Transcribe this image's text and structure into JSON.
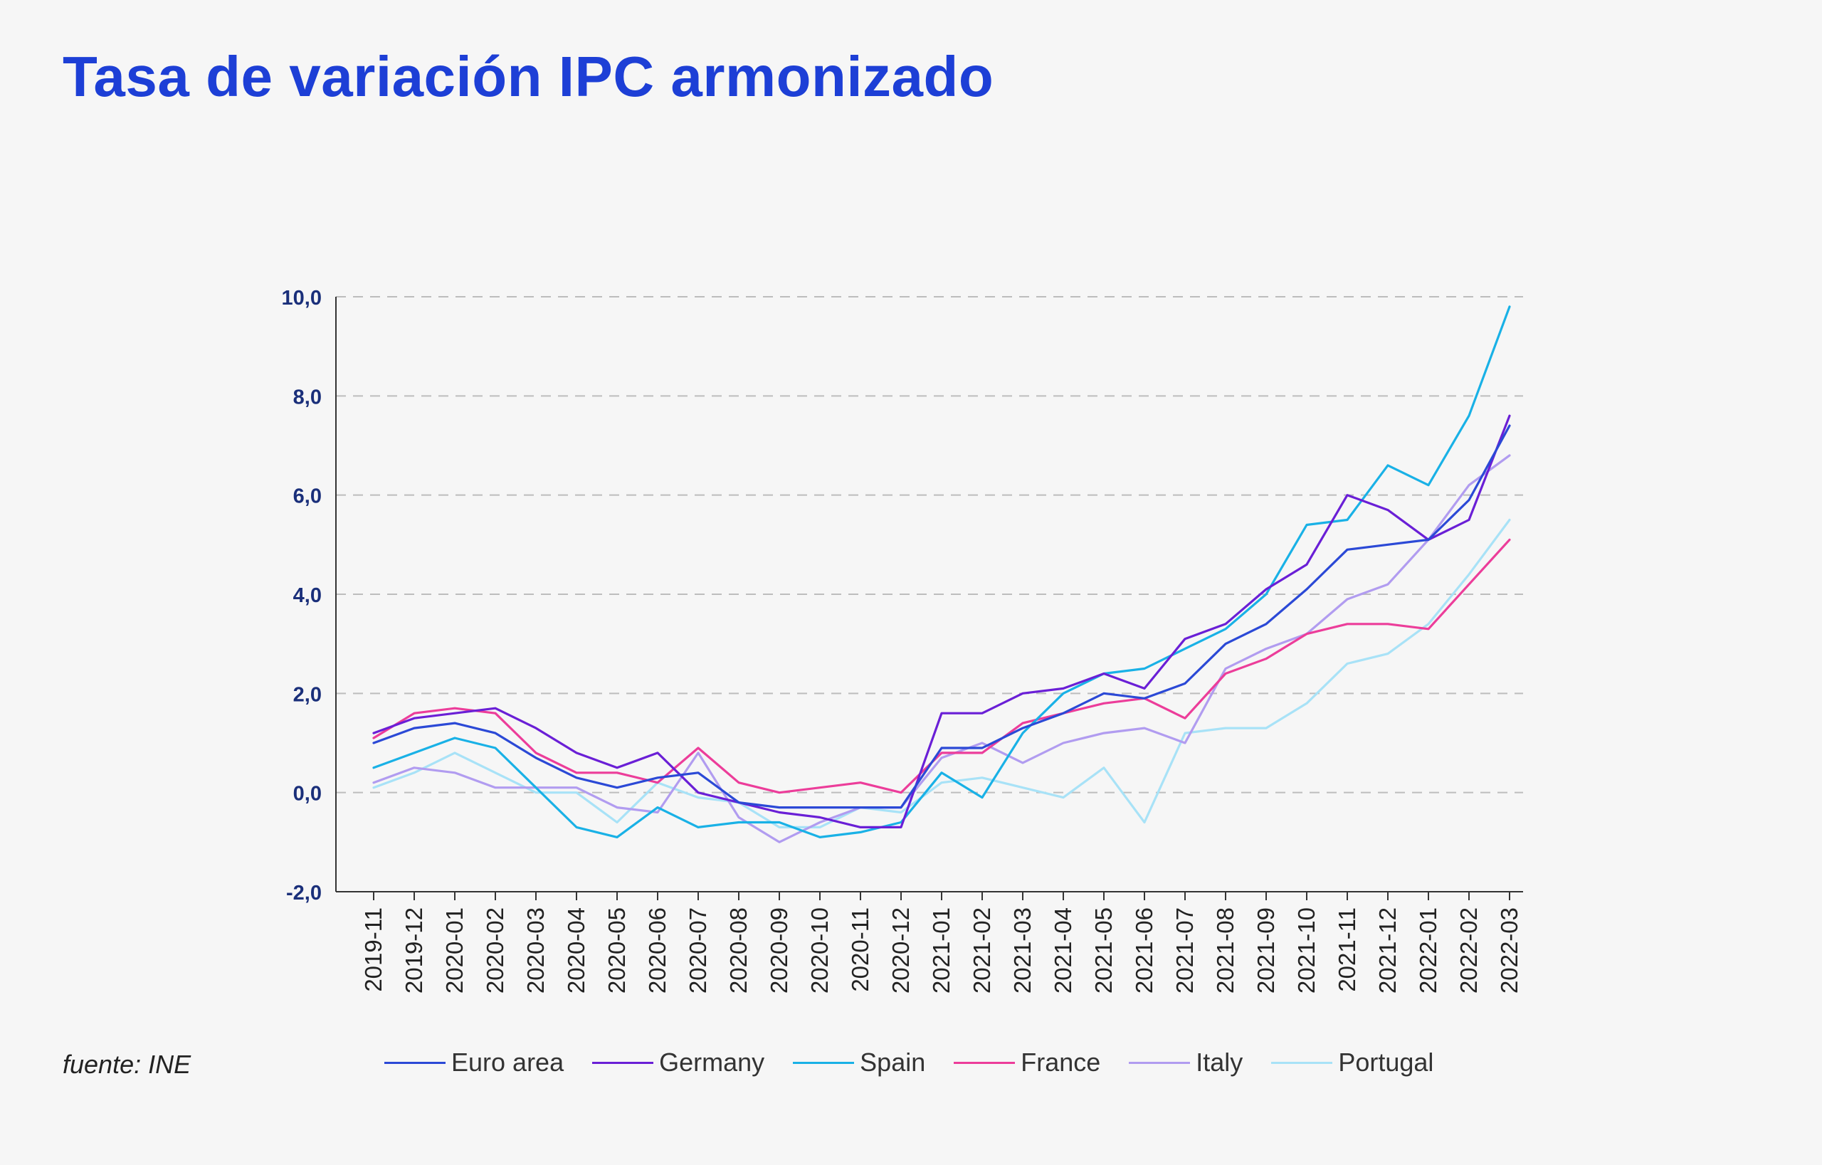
{
  "title": "Tasa de variación IPC armonizado",
  "source": "fuente: INE",
  "chart_data": {
    "type": "line",
    "title": "Tasa de variación IPC armonizado",
    "xlabel": "",
    "ylabel": "",
    "ylim": [
      -2.0,
      10.0
    ],
    "yticks": [
      -2.0,
      0.0,
      2.0,
      4.0,
      6.0,
      8.0,
      10.0
    ],
    "ytick_labels": [
      "-2,0",
      "0,0",
      "2,0",
      "4,0",
      "6,0",
      "8,0",
      "10,0"
    ],
    "grid": "horizontal-dashed",
    "legend_position": "bottom",
    "categories": [
      "2019-11",
      "2019-12",
      "2020-01",
      "2020-02",
      "2020-03",
      "2020-04",
      "2020-05",
      "2020-06",
      "2020-07",
      "2020-08",
      "2020-09",
      "2020-10",
      "2020-11",
      "2020-12",
      "2021-01",
      "2021-02",
      "2021-03",
      "2021-04",
      "2021-05",
      "2021-06",
      "2021-07",
      "2021-08",
      "2021-09",
      "2021-10",
      "2021-11",
      "2021-12",
      "2022-01",
      "2022-02",
      "2022-03"
    ],
    "series": [
      {
        "name": "Euro area",
        "color": "#2b49d6",
        "values": [
          1.0,
          1.3,
          1.4,
          1.2,
          0.7,
          0.3,
          0.1,
          0.3,
          0.4,
          -0.2,
          -0.3,
          -0.3,
          -0.3,
          -0.3,
          0.9,
          0.9,
          1.3,
          1.6,
          2.0,
          1.9,
          2.2,
          3.0,
          3.4,
          4.1,
          4.9,
          5.0,
          5.1,
          5.9,
          7.4
        ]
      },
      {
        "name": "Germany",
        "color": "#6a1fd6",
        "values": [
          1.2,
          1.5,
          1.6,
          1.7,
          1.3,
          0.8,
          0.5,
          0.8,
          0.0,
          -0.2,
          -0.4,
          -0.5,
          -0.7,
          -0.7,
          1.6,
          1.6,
          2.0,
          2.1,
          2.4,
          2.1,
          3.1,
          3.4,
          4.1,
          4.6,
          6.0,
          5.7,
          5.1,
          5.5,
          7.6
        ]
      },
      {
        "name": "Spain",
        "color": "#19b1e6",
        "values": [
          0.5,
          0.8,
          1.1,
          0.9,
          0.1,
          -0.7,
          -0.9,
          -0.3,
          -0.7,
          -0.6,
          -0.6,
          -0.9,
          -0.8,
          -0.6,
          0.4,
          -0.1,
          1.2,
          2.0,
          2.4,
          2.5,
          2.9,
          3.3,
          4.0,
          5.4,
          5.5,
          6.6,
          6.2,
          7.6,
          9.8
        ]
      },
      {
        "name": "France",
        "color": "#ec3d9a",
        "values": [
          1.1,
          1.6,
          1.7,
          1.6,
          0.8,
          0.4,
          0.4,
          0.2,
          0.9,
          0.2,
          0.0,
          0.1,
          0.2,
          0.0,
          0.8,
          0.8,
          1.4,
          1.6,
          1.8,
          1.9,
          1.5,
          2.4,
          2.7,
          3.2,
          3.4,
          3.4,
          3.3,
          4.2,
          5.1
        ]
      },
      {
        "name": "Italy",
        "color": "#b19cf0",
        "values": [
          0.2,
          0.5,
          0.4,
          0.1,
          0.1,
          0.1,
          -0.3,
          -0.4,
          0.8,
          -0.5,
          -1.0,
          -0.6,
          -0.3,
          -0.3,
          0.7,
          1.0,
          0.6,
          1.0,
          1.2,
          1.3,
          1.0,
          2.5,
          2.9,
          3.2,
          3.9,
          4.2,
          5.1,
          6.2,
          6.8
        ]
      },
      {
        "name": "Portugal",
        "color": "#a8e2f7",
        "values": [
          0.1,
          0.4,
          0.8,
          0.4,
          0.0,
          0.0,
          -0.6,
          0.2,
          -0.1,
          -0.2,
          -0.7,
          -0.7,
          -0.3,
          -0.4,
          0.2,
          0.3,
          0.1,
          -0.1,
          0.5,
          -0.6,
          1.2,
          1.3,
          1.3,
          1.8,
          2.6,
          2.8,
          3.4,
          4.4,
          5.5
        ]
      }
    ]
  }
}
